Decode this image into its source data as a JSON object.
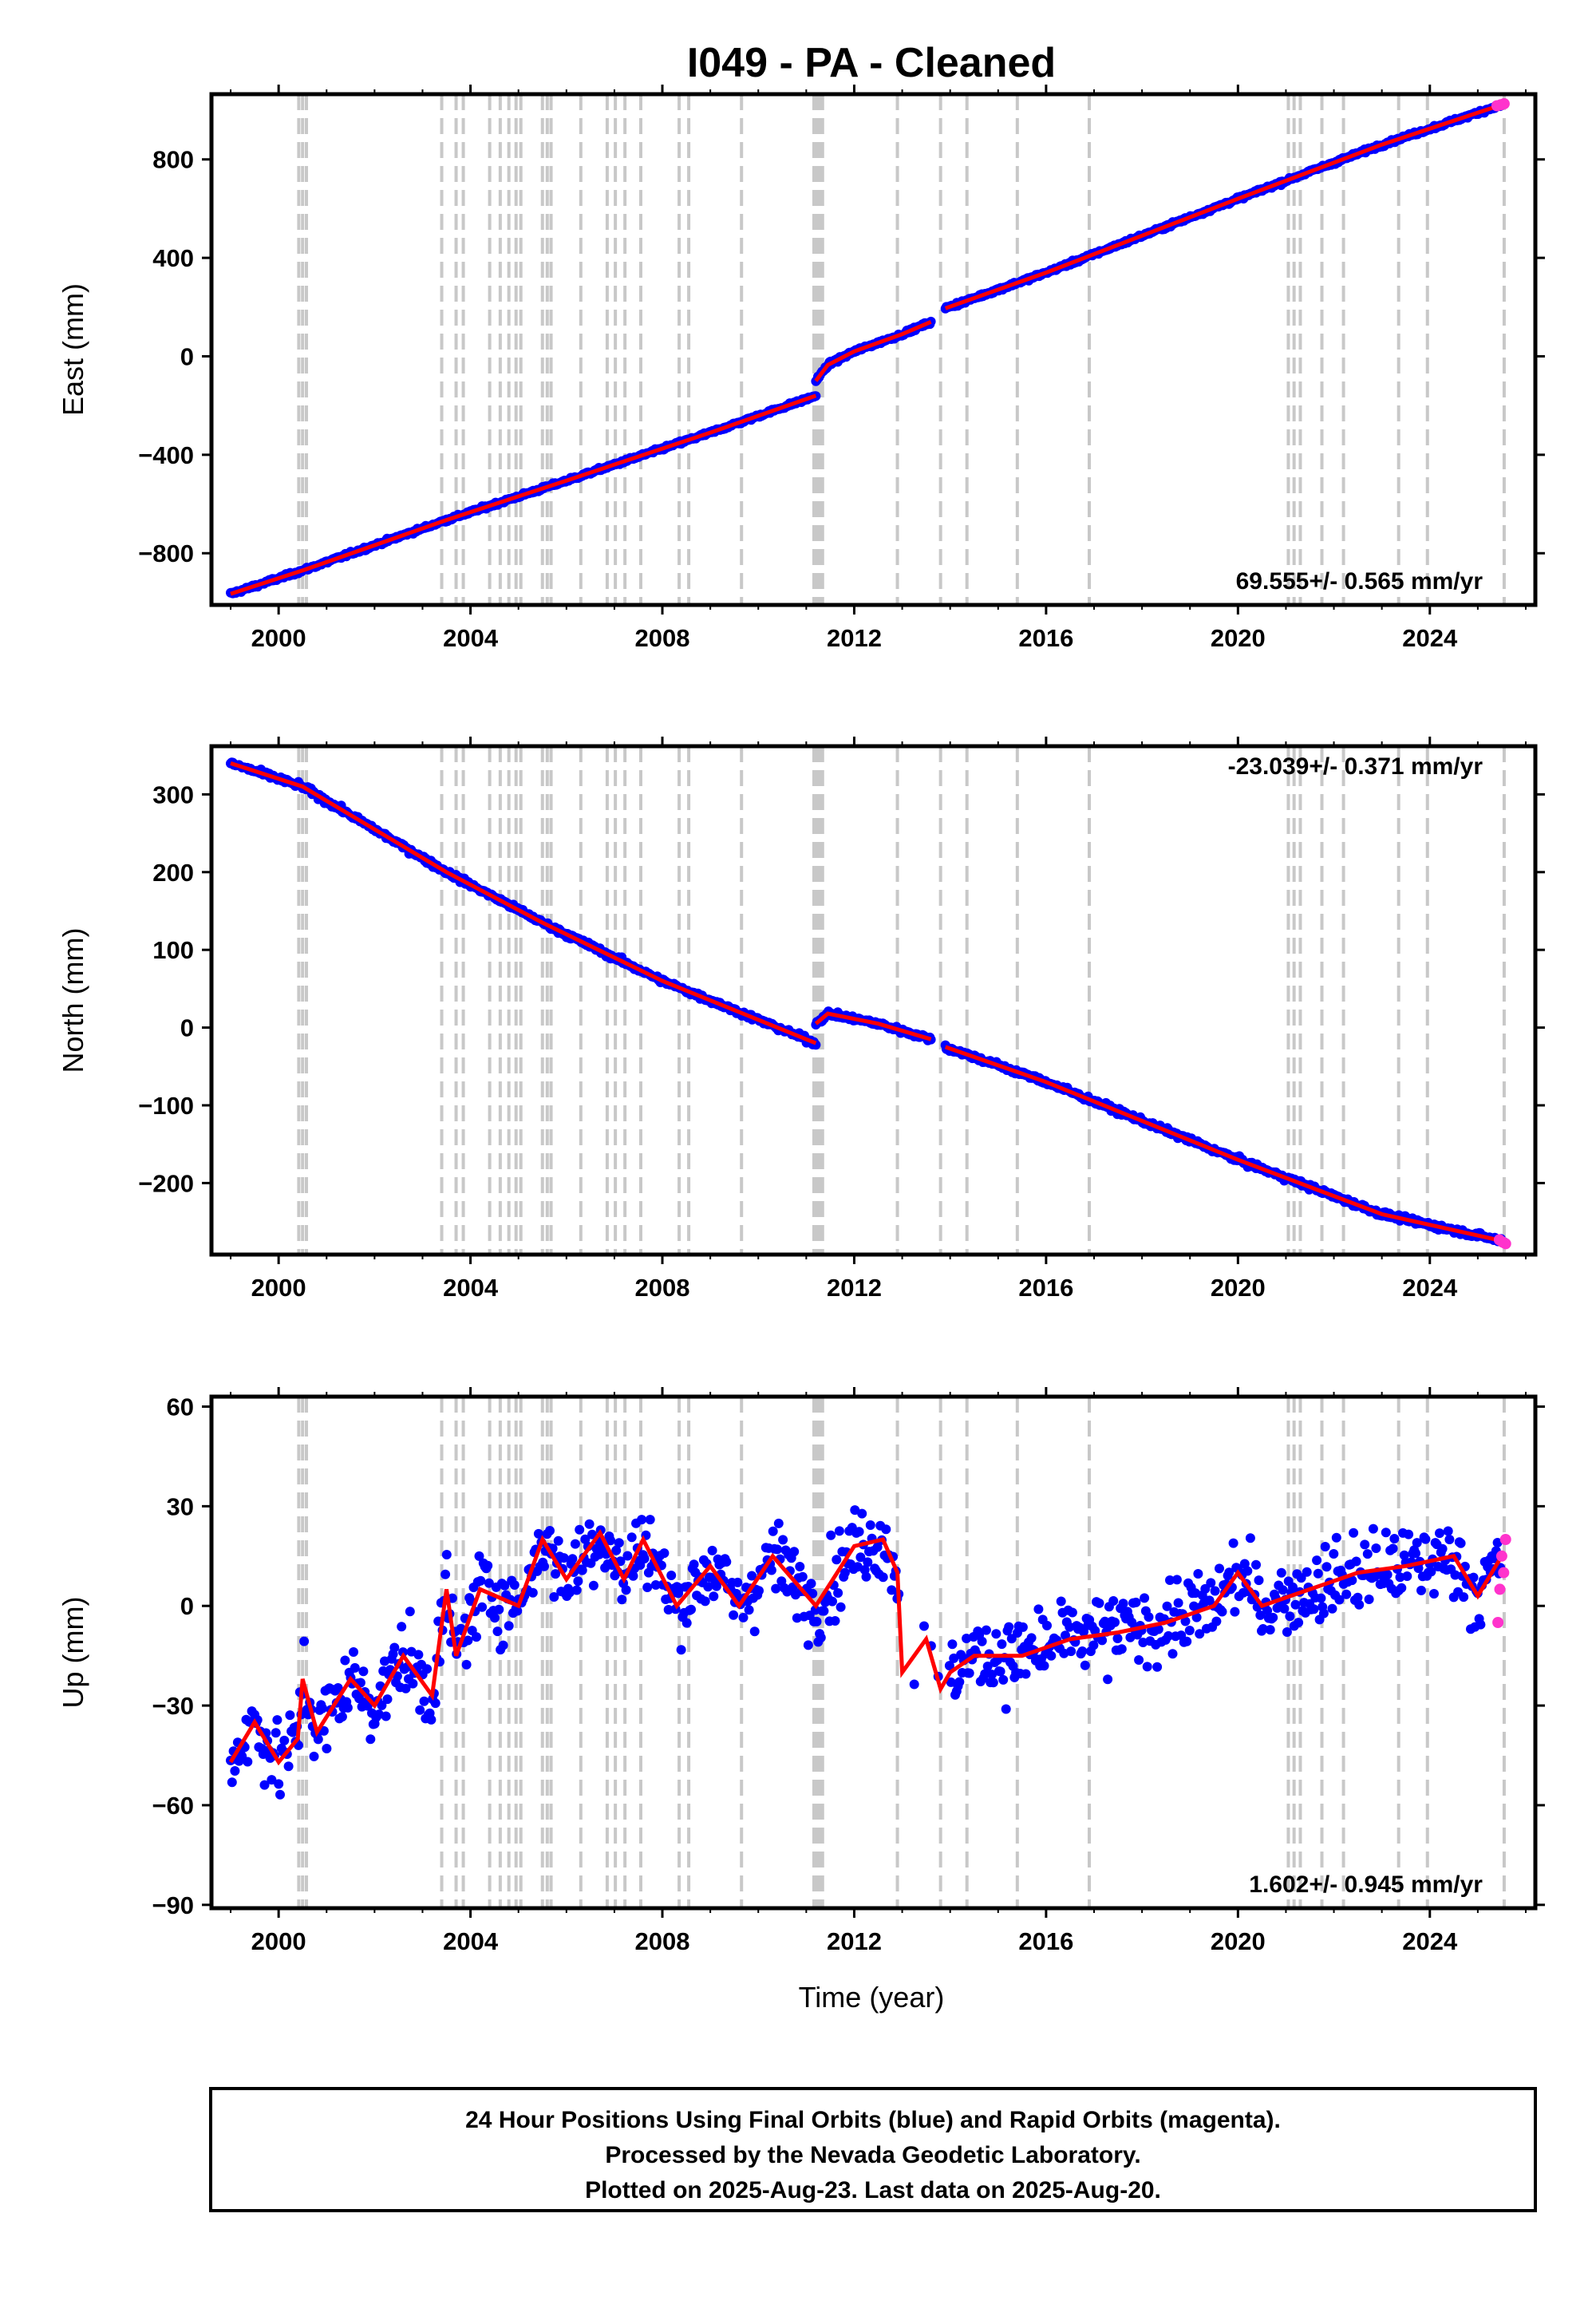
{
  "chart_data": {
    "title": "I049  - PA - Cleaned",
    "type": "scatter",
    "xlabel": "Time (year)",
    "x_ticks": [
      2000,
      2004,
      2008,
      2012,
      2016,
      2020,
      2024
    ],
    "xlim": [
      1998.6,
      2026.2
    ],
    "colors": {
      "final_orbits": "#0000ff",
      "rapid_orbits": "#ff33cc",
      "model": "#ff0000",
      "event_lines": "#c8c8c8"
    },
    "event_lines": [
      2000.42,
      2000.5,
      2000.58,
      2003.4,
      2003.7,
      2003.85,
      2004.4,
      2004.62,
      2004.8,
      2004.95,
      2005.05,
      2005.5,
      2005.6,
      2005.68,
      2006.3,
      2006.85,
      2007.02,
      2007.22,
      2007.55,
      2008.35,
      2008.55,
      2009.65,
      2011.16,
      2011.22,
      2011.28,
      2011.34,
      2012.9,
      2013.8,
      2014.35,
      2015.4,
      2016.9,
      2021.05,
      2021.17,
      2021.3,
      2021.75,
      2022.2,
      2023.35,
      2023.95,
      2025.55
    ],
    "panels": [
      {
        "id": "east",
        "ylabel": "East (mm)",
        "ylim": [
          -1010,
          1065
        ],
        "y_ticks": [
          -800,
          -400,
          0,
          400,
          800
        ],
        "y_tick_labels": [
          "−800",
          "−400",
          "0",
          "400",
          "800"
        ],
        "rate_label": "69.555+/- 0.565 mm/yr",
        "rate_position": "bottom-right",
        "series": [
          {
            "x": [
              1999.0,
              2000.5,
              2003.5,
              2006.0,
              2009.0,
              2011.2
            ],
            "y": [
              -965,
              -870,
              -665,
              -505,
              -310,
              -160
            ]
          },
          {
            "x": [
              2011.2,
              2011.45,
              2012.0,
              2013.0,
              2013.6
            ],
            "y": [
              -100,
              -35,
              20,
              90,
              140
            ]
          },
          {
            "x": [
              2013.9,
              2016.0,
              2020.0,
              2023.0,
              2025.55
            ],
            "y": [
              195,
              340,
              640,
              860,
              1025
            ]
          }
        ],
        "noise_mm": 8,
        "rapid_points": {
          "x": [
            2025.4,
            2025.48,
            2025.55
          ],
          "y": [
            1018,
            1022,
            1026
          ]
        }
      },
      {
        "id": "north",
        "ylabel": "North (mm)",
        "ylim": [
          -292,
          362
        ],
        "y_ticks": [
          -200,
          -100,
          0,
          100,
          200,
          300
        ],
        "y_tick_labels": [
          "−200",
          "−100",
          "0",
          "100",
          "200",
          "300"
        ],
        "rate_label": "-23.039+/- 0.371 mm/yr",
        "rate_position": "top-right",
        "series": [
          {
            "x": [
              1999.0,
              2000.5,
              2003.5,
              2005.5,
              2008.0,
              2011.2
            ],
            "y": [
              340,
              310,
              200,
              135,
              60,
              -20
            ]
          },
          {
            "x": [
              2011.2,
              2011.45,
              2012.5,
              2013.6
            ],
            "y": [
              5,
              18,
              5,
              -15
            ]
          },
          {
            "x": [
              2013.9,
              2016.0,
              2020.0,
              2023.0,
              2025.55
            ],
            "y": [
              -25,
              -70,
              -170,
              -240,
              -275
            ]
          }
        ],
        "noise_mm": 4,
        "rapid_points": {
          "x": [
            2025.45,
            2025.52,
            2025.58
          ],
          "y": [
            -273,
            -276,
            -278
          ]
        }
      },
      {
        "id": "up",
        "ylabel": "Up (mm)",
        "ylim": [
          -91,
          63
        ],
        "y_ticks": [
          -90,
          -60,
          -30,
          0,
          30,
          60
        ],
        "y_tick_labels": [
          "−90",
          "−60",
          "−30",
          "0",
          "30",
          "60"
        ],
        "rate_label": "1.602+/- 0.945 mm/yr",
        "rate_position": "bottom-right",
        "model": {
          "x": [
            1999.0,
            1999.5,
            2000.0,
            2000.4,
            2000.5,
            2000.8,
            2001.5,
            2002.0,
            2002.6,
            2003.2,
            2003.5,
            2003.7,
            2004.2,
            2005.0,
            2005.5,
            2006.0,
            2006.7,
            2007.2,
            2007.6,
            2008.3,
            2009.0,
            2009.6,
            2010.3,
            2011.2,
            2012.0,
            2012.6,
            2012.9,
            2013.0,
            2013.5,
            2013.8,
            2014.0,
            2014.5,
            2015.5,
            2016.5,
            2017.5,
            2018.5,
            2019.5,
            2020.0,
            2020.5,
            2021.5,
            2022.5,
            2023.5,
            2024.5,
            2025.0,
            2025.5
          ],
          "y": [
            -47,
            -35,
            -47,
            -40,
            -22,
            -38,
            -22,
            -30,
            -15,
            -27,
            5,
            -15,
            5,
            0,
            20,
            8,
            22,
            8,
            20,
            0,
            12,
            0,
            15,
            0,
            18,
            20,
            10,
            -20,
            -10,
            -25,
            -20,
            -15,
            -15,
            -10,
            -8,
            -5,
            0,
            10,
            0,
            5,
            10,
            12,
            15,
            3,
            15
          ]
        },
        "noise_mm": 8,
        "rapid_points": {
          "x": [
            2025.42,
            2025.46,
            2025.5,
            2025.54,
            2025.58
          ],
          "y": [
            -5,
            5,
            15,
            10,
            20
          ]
        }
      }
    ]
  },
  "caption": {
    "line1": "24 Hour Positions Using Final Orbits (blue) and Rapid Orbits (magenta).",
    "line2": "Processed by the Nevada Geodetic Laboratory.",
    "line3": "Plotted on 2025-Aug-23. Last data on 2025-Aug-20."
  }
}
